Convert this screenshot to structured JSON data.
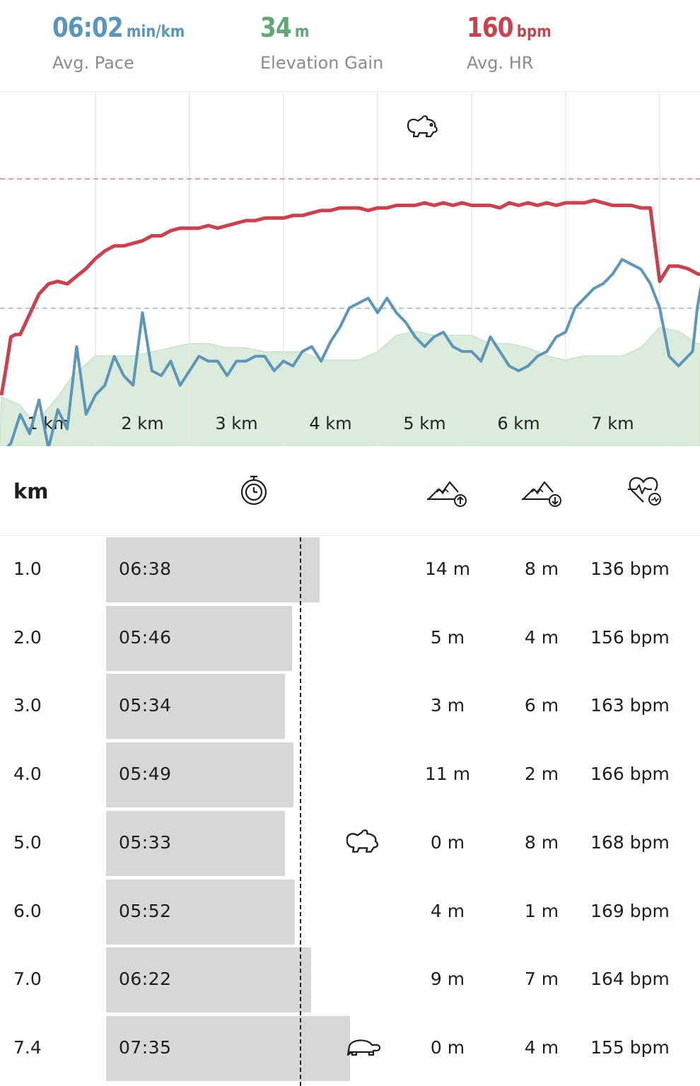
{
  "summary": {
    "pace": {
      "value": "06:02",
      "unit": "min/km",
      "label": "Avg. Pace",
      "color": "#5b95b9"
    },
    "elevation": {
      "value": "34",
      "unit": "m",
      "label": "Elevation Gain",
      "color": "#5fa873"
    },
    "hr": {
      "value": "160",
      "unit": "bpm",
      "label": "Avg. HR",
      "color": "#c64452"
    }
  },
  "chart_data": {
    "type": "line",
    "x_ticks": [
      "1 km",
      "2 km",
      "3 km",
      "4 km",
      "5 km",
      "6 km",
      "7 km"
    ],
    "colors": {
      "hr": "#c8434f",
      "pace": "#5d96b8",
      "elevation": "#dcecdc"
    },
    "markers": {
      "fastest": "rabbit-icon"
    },
    "series": [
      {
        "x": [
          0,
          0.05,
          0.1,
          0.15,
          0.2,
          0.3,
          0.4,
          0.5,
          0.6,
          0.7,
          0.8,
          0.9,
          1.0,
          1.1,
          1.2,
          1.3,
          1.4,
          1.5,
          1.6,
          1.7,
          1.8,
          1.9,
          2.0,
          2.1,
          2.2,
          2.3,
          2.4,
          2.5,
          2.6,
          2.7,
          2.8,
          2.9,
          3.0,
          3.1,
          3.2,
          3.3,
          3.4,
          3.5,
          3.6,
          3.7,
          3.8,
          3.9,
          4.0,
          4.1,
          4.2,
          4.3,
          4.4,
          4.5,
          4.6,
          4.7,
          4.8,
          4.9,
          5.0,
          5.1,
          5.2,
          5.3,
          5.4,
          5.5,
          5.6,
          5.7,
          5.8,
          5.9,
          6.0,
          6.1,
          6.2,
          6.3,
          6.4,
          6.5,
          6.6,
          6.7,
          6.8,
          6.9,
          7.0,
          7.1,
          7.2,
          7.3,
          7.35,
          7.4,
          7.5,
          7.6,
          7.7,
          7.8,
          7.9
        ],
        "values": [
          105,
          116,
          128,
          129,
          129,
          137,
          145,
          149,
          150,
          149,
          152,
          155,
          159,
          162,
          164,
          164,
          165,
          166,
          168,
          168,
          170,
          171,
          171,
          171,
          172,
          171,
          172,
          173,
          174,
          174,
          175,
          175,
          175,
          176,
          176,
          177,
          178,
          178,
          179,
          179,
          179,
          178,
          179,
          179,
          180,
          180,
          180,
          181,
          180,
          181,
          180,
          181,
          180,
          180,
          180,
          179,
          181,
          180,
          181,
          180,
          181,
          180,
          181,
          181,
          181,
          182,
          181,
          180,
          180,
          180,
          179,
          179,
          150,
          156,
          156,
          155,
          154,
          153,
          152,
          152,
          152,
          152,
          152
        ]
      },
      {
        "x": [
          0,
          0.1,
          0.2,
          0.3,
          0.4,
          0.5,
          0.6,
          0.7,
          0.8,
          0.9,
          1.0,
          1.1,
          1.2,
          1.3,
          1.4,
          1.5,
          1.6,
          1.7,
          1.8,
          1.9,
          2.0,
          2.1,
          2.2,
          2.3,
          2.4,
          2.5,
          2.6,
          2.7,
          2.8,
          2.9,
          3.0,
          3.1,
          3.2,
          3.3,
          3.4,
          3.5,
          3.6,
          3.7,
          3.8,
          3.9,
          4.0,
          4.1,
          4.2,
          4.3,
          4.4,
          4.5,
          4.6,
          4.7,
          4.8,
          4.9,
          5.0,
          5.1,
          5.2,
          5.3,
          5.4,
          5.5,
          5.6,
          5.7,
          5.8,
          5.9,
          6.0,
          6.1,
          6.2,
          6.3,
          6.4,
          6.5,
          6.6,
          6.7,
          6.8,
          6.9,
          7.0,
          7.1,
          7.2,
          7.3,
          7.35,
          7.4,
          7.5,
          7.6,
          7.7,
          7.8,
          7.9
        ],
        "values": [
          7.0,
          6.9,
          6.6,
          6.8,
          6.45,
          6.95,
          6.55,
          6.75,
          5.9,
          6.6,
          6.4,
          6.3,
          6.0,
          6.2,
          6.3,
          5.55,
          6.15,
          6.2,
          6.05,
          6.3,
          6.15,
          6.0,
          6.05,
          6.05,
          6.2,
          6.05,
          6.05,
          6.0,
          6.0,
          6.15,
          6.05,
          6.1,
          5.95,
          5.9,
          6.05,
          5.85,
          5.7,
          5.5,
          5.45,
          5.4,
          5.55,
          5.4,
          5.55,
          5.65,
          5.8,
          5.9,
          5.8,
          5.75,
          5.9,
          5.95,
          5.95,
          6.05,
          5.8,
          5.95,
          6.1,
          6.15,
          6.1,
          6.0,
          5.95,
          5.8,
          5.75,
          5.5,
          5.4,
          5.3,
          5.25,
          5.15,
          5.0,
          5.05,
          5.1,
          5.25,
          5.5,
          6.0,
          6.1,
          6.0,
          5.95,
          5.5,
          4.95,
          4.6,
          4.45,
          4.3,
          4.6
        ]
      },
      {
        "x": [
          0,
          0.2,
          0.3,
          0.45,
          0.6,
          0.75,
          0.9,
          1.0,
          1.2,
          1.4,
          1.6,
          1.8,
          2.0,
          2.2,
          2.4,
          2.6,
          2.8,
          3.0,
          3.2,
          3.4,
          3.6,
          3.8,
          4.0,
          4.2,
          4.4,
          4.6,
          4.8,
          5.0,
          5.2,
          5.4,
          5.6,
          5.8,
          6.0,
          6.2,
          6.4,
          6.6,
          6.8,
          7.0,
          7.2,
          7.4,
          7.6,
          7.8,
          7.9
        ],
        "values": [
          12,
          10,
          7,
          8,
          12,
          17,
          20,
          22,
          22,
          22,
          23,
          24,
          25,
          25,
          24,
          24,
          23,
          23,
          23,
          21,
          21,
          21,
          23,
          27,
          28,
          27,
          27,
          27,
          25,
          25,
          24,
          22,
          21,
          22,
          22,
          22,
          24,
          29,
          28,
          25,
          25,
          25,
          21
        ]
      }
    ]
  },
  "table": {
    "header": {
      "km": "km"
    },
    "rows": [
      {
        "km": "1.0",
        "time": "06:38",
        "up": "14 m",
        "down": "8 m",
        "hr": "136 bpm",
        "pace_seconds": 398
      },
      {
        "km": "2.0",
        "time": "05:46",
        "up": "5 m",
        "down": "4 m",
        "hr": "156 bpm",
        "pace_seconds": 346
      },
      {
        "km": "3.0",
        "time": "05:34",
        "up": "3 m",
        "down": "6 m",
        "hr": "163 bpm",
        "pace_seconds": 334
      },
      {
        "km": "4.0",
        "time": "05:49",
        "up": "11 m",
        "down": "2 m",
        "hr": "166 bpm",
        "pace_seconds": 349
      },
      {
        "km": "5.0",
        "time": "05:33",
        "up": "0 m",
        "down": "8 m",
        "hr": "168 bpm",
        "pace_seconds": 333,
        "marker": "rabbit-icon"
      },
      {
        "km": "6.0",
        "time": "05:52",
        "up": "4 m",
        "down": "1 m",
        "hr": "169 bpm",
        "pace_seconds": 352
      },
      {
        "km": "7.0",
        "time": "06:22",
        "up": "9 m",
        "down": "7 m",
        "hr": "164 bpm",
        "pace_seconds": 382
      },
      {
        "km": "7.4",
        "time": "07:35",
        "up": "0 m",
        "down": "4 m",
        "hr": "155 bpm",
        "pace_seconds": 455,
        "marker": "turtle-icon"
      }
    ]
  }
}
